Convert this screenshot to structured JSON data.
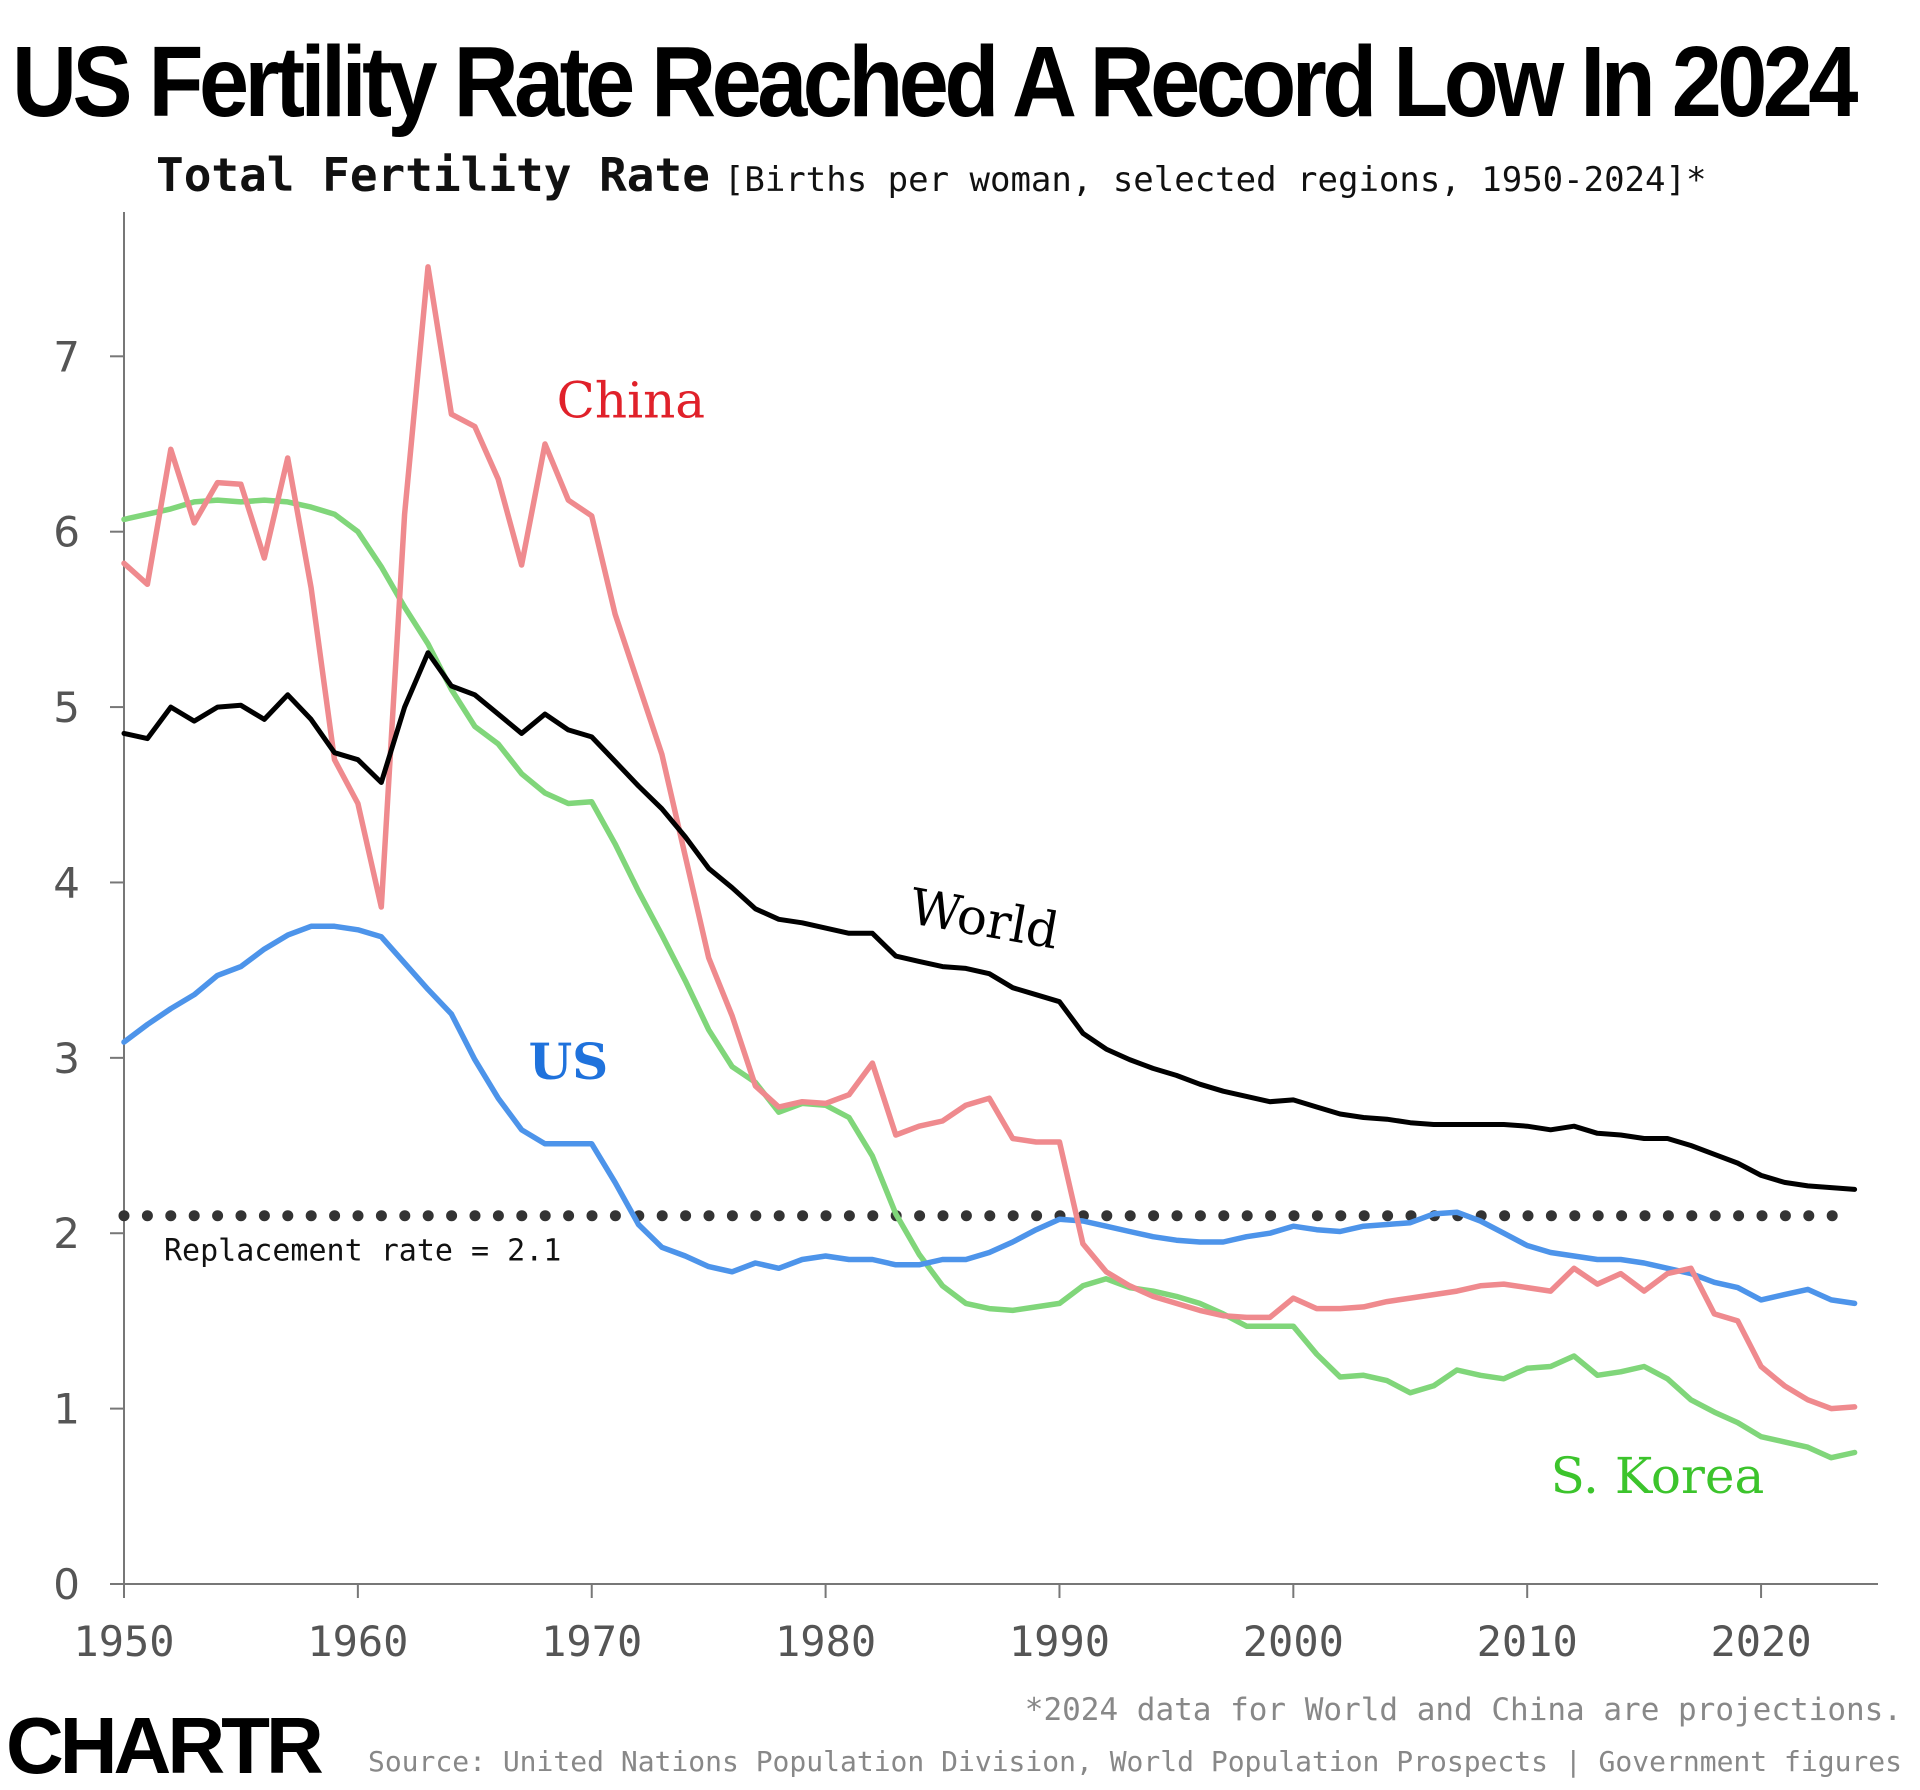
{
  "header": {
    "title": "US Fertility Rate Reached A Record Low In 2024",
    "subtitle_main": "Total Fertility Rate",
    "subtitle_detail": "[Births per woman, selected regions, 1950-2024]*"
  },
  "footer": {
    "footnote": "*2024 data for World and China are projections.",
    "source": "Source: United Nations Population Division, World Population Prospects | Government figures",
    "logo": "CHARTR"
  },
  "chart_data": {
    "type": "line",
    "title": "US Fertility Rate Reached A Record Low In 2024",
    "subtitle": "Total Fertility Rate [Births per woman, selected regions, 1950-2024]*",
    "xlabel": "",
    "ylabel": "",
    "xlim": [
      1950,
      2025
    ],
    "ylim": [
      0,
      7.8
    ],
    "x_ticks": [
      1950,
      1960,
      1970,
      1980,
      1990,
      2000,
      2010,
      2020
    ],
    "y_ticks": [
      0,
      1,
      2,
      3,
      4,
      5,
      6,
      7
    ],
    "grid": false,
    "legend": "direct labels on lines",
    "reference_line": {
      "value": 2.1,
      "label": "Replacement rate = 2.1",
      "style": "dotted",
      "color": "#333333"
    },
    "x": [
      1950,
      1951,
      1952,
      1953,
      1954,
      1955,
      1956,
      1957,
      1958,
      1959,
      1960,
      1961,
      1962,
      1963,
      1964,
      1965,
      1966,
      1967,
      1968,
      1969,
      1970,
      1971,
      1972,
      1973,
      1974,
      1975,
      1976,
      1977,
      1978,
      1979,
      1980,
      1981,
      1982,
      1983,
      1984,
      1985,
      1986,
      1987,
      1988,
      1989,
      1990,
      1991,
      1992,
      1993,
      1994,
      1995,
      1996,
      1997,
      1998,
      1999,
      2000,
      2001,
      2002,
      2003,
      2004,
      2005,
      2006,
      2007,
      2008,
      2009,
      2010,
      2011,
      2012,
      2013,
      2014,
      2015,
      2016,
      2017,
      2018,
      2019,
      2020,
      2021,
      2022,
      2023,
      2024
    ],
    "series": [
      {
        "name": "World",
        "color": "#000000",
        "label_color": "#000000",
        "values": [
          4.85,
          4.82,
          5.0,
          4.92,
          5.0,
          5.01,
          4.93,
          5.07,
          4.93,
          4.74,
          4.7,
          4.57,
          5.0,
          5.31,
          5.12,
          5.07,
          4.96,
          4.85,
          4.96,
          4.87,
          4.83,
          4.69,
          4.55,
          4.42,
          4.26,
          4.08,
          3.97,
          3.85,
          3.79,
          3.77,
          3.74,
          3.71,
          3.71,
          3.58,
          3.55,
          3.52,
          3.51,
          3.48,
          3.4,
          3.36,
          3.32,
          3.14,
          3.05,
          2.99,
          2.94,
          2.9,
          2.85,
          2.81,
          2.78,
          2.75,
          2.76,
          2.72,
          2.68,
          2.66,
          2.65,
          2.63,
          2.62,
          2.62,
          2.62,
          2.62,
          2.61,
          2.59,
          2.61,
          2.57,
          2.56,
          2.54,
          2.54,
          2.5,
          2.45,
          2.4,
          2.33,
          2.29,
          2.27,
          2.26,
          2.25
        ]
      },
      {
        "name": "China",
        "color": "#ef8a8e",
        "label_color": "#e0212a",
        "values": [
          5.82,
          5.7,
          6.47,
          6.05,
          6.28,
          6.27,
          5.85,
          6.42,
          5.68,
          4.7,
          4.45,
          3.86,
          6.1,
          7.51,
          6.67,
          6.6,
          6.3,
          5.81,
          6.5,
          6.18,
          6.09,
          5.53,
          5.13,
          4.73,
          4.15,
          3.57,
          3.24,
          2.84,
          2.72,
          2.75,
          2.74,
          2.79,
          2.97,
          2.56,
          2.61,
          2.64,
          2.73,
          2.77,
          2.54,
          2.52,
          2.52,
          1.94,
          1.78,
          1.7,
          1.64,
          1.6,
          1.56,
          1.53,
          1.52,
          1.52,
          1.63,
          1.57,
          1.57,
          1.58,
          1.61,
          1.63,
          1.65,
          1.67,
          1.7,
          1.71,
          1.69,
          1.67,
          1.8,
          1.71,
          1.77,
          1.67,
          1.77,
          1.8,
          1.54,
          1.5,
          1.24,
          1.13,
          1.05,
          1.0,
          1.01
        ]
      },
      {
        "name": "US",
        "color": "#4d94ea",
        "label_color": "#1f72dc",
        "values": [
          3.09,
          3.19,
          3.28,
          3.36,
          3.47,
          3.52,
          3.62,
          3.7,
          3.75,
          3.75,
          3.73,
          3.69,
          3.54,
          3.39,
          3.25,
          2.99,
          2.77,
          2.59,
          2.51,
          2.51,
          2.51,
          2.29,
          2.05,
          1.92,
          1.87,
          1.81,
          1.78,
          1.83,
          1.8,
          1.85,
          1.87,
          1.85,
          1.85,
          1.82,
          1.82,
          1.85,
          1.85,
          1.89,
          1.95,
          2.02,
          2.08,
          2.07,
          2.04,
          2.01,
          1.98,
          1.96,
          1.95,
          1.95,
          1.98,
          2.0,
          2.04,
          2.02,
          2.01,
          2.04,
          2.05,
          2.06,
          2.11,
          2.12,
          2.07,
          2.0,
          1.93,
          1.89,
          1.87,
          1.85,
          1.85,
          1.83,
          1.8,
          1.77,
          1.72,
          1.69,
          1.62,
          1.65,
          1.68,
          1.62,
          1.6
        ]
      },
      {
        "name": "S. Korea",
        "color": "#80d67a",
        "label_color": "#3cc42c",
        "values": [
          6.07,
          6.1,
          6.13,
          6.17,
          6.18,
          6.17,
          6.18,
          6.17,
          6.14,
          6.1,
          6.0,
          5.8,
          5.57,
          5.36,
          5.1,
          4.89,
          4.79,
          4.62,
          4.51,
          4.45,
          4.46,
          4.22,
          3.95,
          3.7,
          3.44,
          3.16,
          2.95,
          2.86,
          2.69,
          2.74,
          2.73,
          2.66,
          2.44,
          2.11,
          1.88,
          1.7,
          1.6,
          1.57,
          1.56,
          1.58,
          1.6,
          1.7,
          1.74,
          1.69,
          1.67,
          1.64,
          1.6,
          1.54,
          1.47,
          1.47,
          1.47,
          1.31,
          1.18,
          1.19,
          1.16,
          1.09,
          1.13,
          1.22,
          1.19,
          1.17,
          1.23,
          1.24,
          1.3,
          1.19,
          1.21,
          1.24,
          1.17,
          1.05,
          0.98,
          0.92,
          0.84,
          0.81,
          0.78,
          0.72,
          0.75
        ]
      }
    ],
    "label_positions": {
      "World": [
        1983.5,
        3.77
      ],
      "China": [
        1968.5,
        6.65
      ],
      "US": [
        1967.3,
        2.88
      ],
      "S. Korea": [
        2011,
        0.52
      ]
    }
  }
}
